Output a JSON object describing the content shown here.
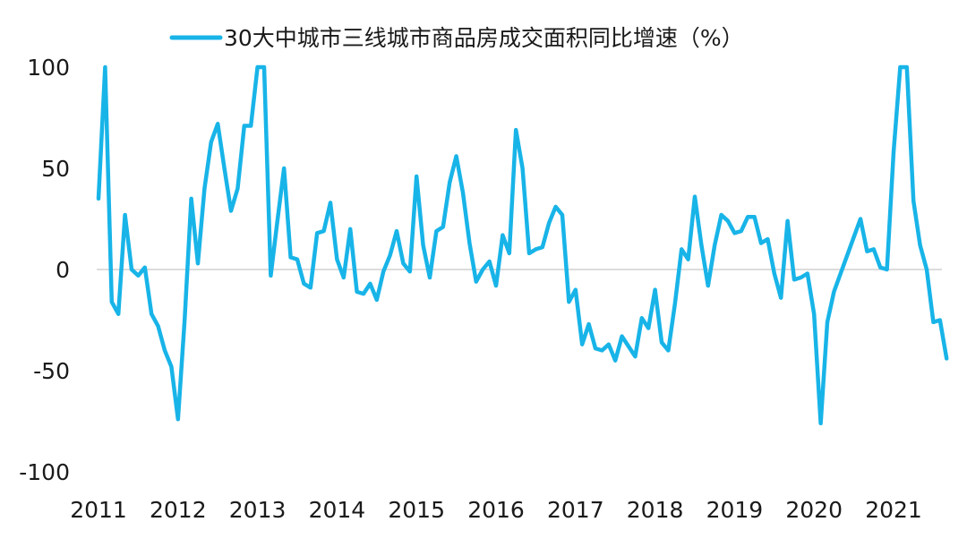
{
  "chart_data": {
    "type": "line",
    "title": "",
    "xlabel": "",
    "ylabel": "",
    "ylim": [
      -100,
      100
    ],
    "yticks": [
      100,
      50,
      0,
      -50,
      -100
    ],
    "xtick_labels": [
      "2011",
      "2012",
      "2013",
      "2014",
      "2015",
      "2016",
      "2017",
      "2018",
      "2019",
      "2020",
      "2021"
    ],
    "grid": false,
    "zero_line": true,
    "legend": "top-center",
    "series": [
      {
        "name": "30大中城市三线城市商品房成交面积同比增速（%）",
        "color": "#18b4e8",
        "x_start": "2011-01",
        "frequency": "monthly",
        "values": [
          35,
          100,
          -16,
          -22,
          27,
          0,
          -3,
          1,
          -22,
          -28,
          -40,
          -48,
          -74,
          -25,
          35,
          3,
          40,
          63,
          72,
          50,
          29,
          40,
          71,
          71,
          100,
          100,
          -3,
          24,
          50,
          6,
          5,
          -7,
          -9,
          18,
          19,
          33,
          5,
          -4,
          20,
          -11,
          -12,
          -7,
          -15,
          -1,
          7,
          19,
          3,
          -1,
          46,
          12,
          -4,
          19,
          21,
          43,
          56,
          38,
          13,
          -6,
          0,
          4,
          -8,
          17,
          8,
          69,
          50,
          8,
          10,
          11,
          23,
          31,
          27,
          -16,
          -10,
          -37,
          -27,
          -39,
          -40,
          -37,
          -45,
          -33,
          -38,
          -43,
          -24,
          -29,
          -10,
          -36,
          -40,
          -17,
          10,
          5,
          36,
          12,
          -8,
          12,
          27,
          24,
          18,
          19,
          26,
          26,
          13,
          15,
          -2,
          -14,
          24,
          -5,
          -4,
          -2,
          -22,
          -76,
          -26,
          -11,
          -2,
          7,
          16,
          25,
          9,
          10,
          1,
          0,
          58,
          100,
          100,
          34,
          12,
          0,
          -26,
          -25,
          -44
        ]
      }
    ]
  }
}
